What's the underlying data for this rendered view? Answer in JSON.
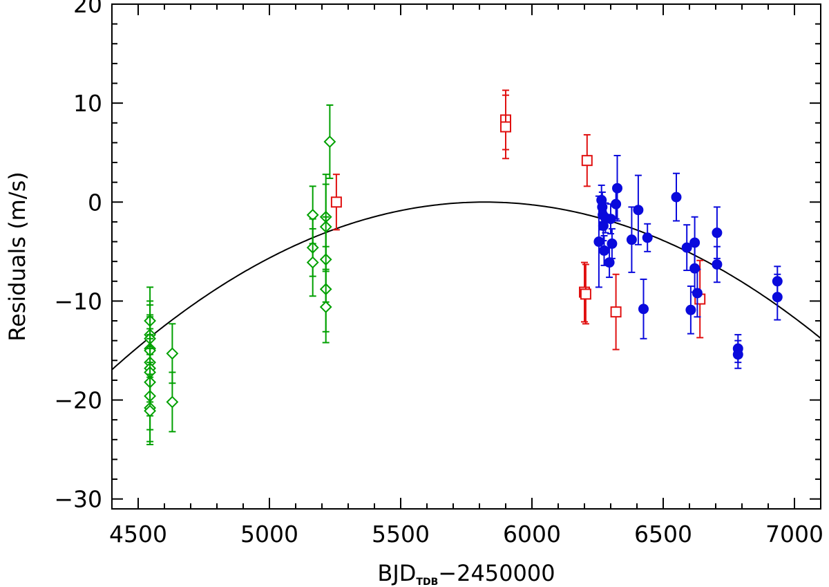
{
  "chart_data": {
    "type": "scatter",
    "title": "",
    "xlabel": "BJD",
    "xlabel_subscript": "TDB",
    "xlabel_suffix": "−2450000",
    "ylabel": "Residuals (m/s)",
    "xlim": [
      4400,
      7100
    ],
    "ylim": [
      -31,
      20
    ],
    "xticks": [
      4500,
      5000,
      5500,
      6000,
      6500,
      7000
    ],
    "yticks": [
      -30,
      -20,
      -10,
      0,
      10,
      20
    ],
    "xtick_labels": [
      "4500",
      "5000",
      "5500",
      "6000",
      "6500",
      "7000"
    ],
    "ytick_labels": [
      "−30",
      "−20",
      "−10",
      "0",
      "10",
      "20"
    ],
    "grid": false,
    "model_curve": {
      "name": "quadratic trend",
      "color": "#000000",
      "vertex_x": 5820,
      "vertex_y": 0,
      "curvature": -8.4e-06
    },
    "series": [
      {
        "name": "green diamonds",
        "marker": "diamond",
        "filled": false,
        "color": "#00a000",
        "points": [
          {
            "x": 4545,
            "y": -12.0,
            "err": 3.4
          },
          {
            "x": 4545,
            "y": -13.4,
            "err": 3.4
          },
          {
            "x": 4545,
            "y": -13.8,
            "err": 3.4
          },
          {
            "x": 4545,
            "y": -14.8,
            "err": 3.4
          },
          {
            "x": 4545,
            "y": -15.0,
            "err": 3.4
          },
          {
            "x": 4545,
            "y": -16.2,
            "err": 3.4
          },
          {
            "x": 4545,
            "y": -16.8,
            "err": 3.4
          },
          {
            "x": 4545,
            "y": -17.2,
            "err": 3.4
          },
          {
            "x": 4545,
            "y": -18.2,
            "err": 3.4
          },
          {
            "x": 4545,
            "y": -19.6,
            "err": 3.4
          },
          {
            "x": 4545,
            "y": -20.8,
            "err": 3.4
          },
          {
            "x": 4545,
            "y": -21.1,
            "err": 3.4
          },
          {
            "x": 4630,
            "y": -15.3,
            "err": 3.0
          },
          {
            "x": 4630,
            "y": -20.2,
            "err": 3.0
          },
          {
            "x": 5165,
            "y": -1.3,
            "err": 2.9
          },
          {
            "x": 5165,
            "y": -4.6,
            "err": 2.9
          },
          {
            "x": 5165,
            "y": -6.1,
            "err": 3.4
          },
          {
            "x": 5215,
            "y": -1.5,
            "err": 4.3
          },
          {
            "x": 5215,
            "y": -2.5,
            "err": 4.3
          },
          {
            "x": 5215,
            "y": -5.8,
            "err": 4.3
          },
          {
            "x": 5215,
            "y": -8.8,
            "err": 4.3
          },
          {
            "x": 5215,
            "y": -10.6,
            "err": 3.6
          },
          {
            "x": 5230,
            "y": 6.1,
            "err": 3.7
          }
        ]
      },
      {
        "name": "red squares",
        "marker": "square",
        "filled": false,
        "color": "#e01010",
        "points": [
          {
            "x": 5255,
            "y": 0.0,
            "err": 2.8
          },
          {
            "x": 5900,
            "y": 8.3,
            "err": 3.0
          },
          {
            "x": 5900,
            "y": 7.6,
            "err": 3.2
          },
          {
            "x": 6200,
            "y": -9.1,
            "err": 3.0
          },
          {
            "x": 6205,
            "y": -9.3,
            "err": 3.0
          },
          {
            "x": 6210,
            "y": 4.2,
            "err": 2.6
          },
          {
            "x": 6320,
            "y": -11.1,
            "err": 3.8
          },
          {
            "x": 6640,
            "y": -9.8,
            "err": 3.9
          }
        ]
      },
      {
        "name": "blue circles",
        "marker": "circle",
        "filled": true,
        "color": "#0a0adc",
        "points": [
          {
            "x": 6255,
            "y": -4.0,
            "err": 4.6
          },
          {
            "x": 6265,
            "y": 0.2,
            "err": 1.5
          },
          {
            "x": 6268,
            "y": -0.5,
            "err": 1.5
          },
          {
            "x": 6270,
            "y": -1.3,
            "err": 1.5
          },
          {
            "x": 6272,
            "y": -2.4,
            "err": 1.5
          },
          {
            "x": 6275,
            "y": -4.9,
            "err": 1.5
          },
          {
            "x": 6280,
            "y": -1.6,
            "err": 1.5
          },
          {
            "x": 6295,
            "y": -6.1,
            "err": 1.5
          },
          {
            "x": 6300,
            "y": -1.7,
            "err": 1.5
          },
          {
            "x": 6305,
            "y": -4.2,
            "err": 1.5
          },
          {
            "x": 6320,
            "y": -0.2,
            "err": 1.5
          },
          {
            "x": 6325,
            "y": 1.4,
            "err": 3.3
          },
          {
            "x": 6380,
            "y": -3.8,
            "err": 3.3
          },
          {
            "x": 6405,
            "y": -0.8,
            "err": 3.5
          },
          {
            "x": 6425,
            "y": -10.8,
            "err": 3.0
          },
          {
            "x": 6440,
            "y": -3.6,
            "err": 1.4
          },
          {
            "x": 6550,
            "y": 0.5,
            "err": 2.4
          },
          {
            "x": 6590,
            "y": -4.6,
            "err": 2.3
          },
          {
            "x": 6605,
            "y": -10.9,
            "err": 2.4
          },
          {
            "x": 6620,
            "y": -4.1,
            "err": 2.6
          },
          {
            "x": 6620,
            "y": -6.7,
            "err": 2.4
          },
          {
            "x": 6630,
            "y": -9.2,
            "err": 2.4
          },
          {
            "x": 6705,
            "y": -3.1,
            "err": 2.6
          },
          {
            "x": 6705,
            "y": -6.3,
            "err": 1.8
          },
          {
            "x": 6785,
            "y": -14.8,
            "err": 1.4
          },
          {
            "x": 6785,
            "y": -15.4,
            "err": 1.4
          },
          {
            "x": 6935,
            "y": -8.0,
            "err": 1.5
          },
          {
            "x": 6935,
            "y": -9.6,
            "err": 2.3
          }
        ]
      }
    ]
  }
}
